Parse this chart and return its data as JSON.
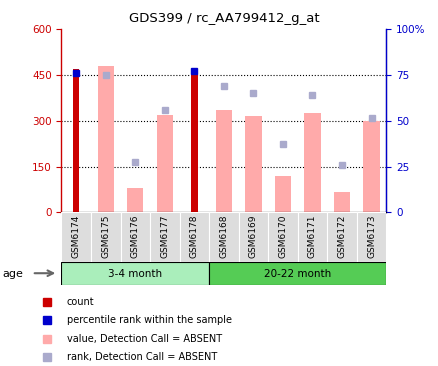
{
  "title": "GDS399 / rc_AA799412_g_at",
  "samples": [
    "GSM6174",
    "GSM6175",
    "GSM6176",
    "GSM6177",
    "GSM6178",
    "GSM6168",
    "GSM6169",
    "GSM6170",
    "GSM6171",
    "GSM6172",
    "GSM6173"
  ],
  "count_values": [
    470,
    null,
    null,
    null,
    470,
    null,
    null,
    null,
    null,
    null,
    null
  ],
  "percentile_values": [
    76,
    null,
    null,
    null,
    77,
    null,
    null,
    null,
    null,
    null,
    null
  ],
  "value_absent": [
    null,
    480,
    80,
    320,
    null,
    335,
    315,
    120,
    325,
    65,
    300
  ],
  "rank_absent": [
    null,
    75,
    27.5,
    55.8,
    null,
    69.2,
    65,
    37.5,
    64.2,
    25.8,
    51.7
  ],
  "left_ylim": [
    0,
    600
  ],
  "right_ylim": [
    0,
    100
  ],
  "left_yticks": [
    0,
    150,
    300,
    450,
    600
  ],
  "left_yticklabels": [
    "0",
    "150",
    "300",
    "450",
    "600"
  ],
  "right_yticks": [
    0,
    25,
    50,
    75,
    100
  ],
  "right_yticklabels": [
    "0",
    "25",
    "50",
    "75",
    "100%"
  ],
  "color_count": "#cc0000",
  "color_percentile": "#0000cc",
  "color_value_absent": "#ffaaaa",
  "color_rank_absent": "#aaaacc",
  "grid_color": "black",
  "bg_color": "#dddddd",
  "group1_color": "#aaeebb",
  "group2_color": "#55cc55",
  "age_label": "age",
  "group1_label": "3-4 month",
  "group2_label": "20-22 month",
  "group1_count": 5,
  "group2_count": 6,
  "hgrid_values": [
    150,
    300,
    450
  ]
}
